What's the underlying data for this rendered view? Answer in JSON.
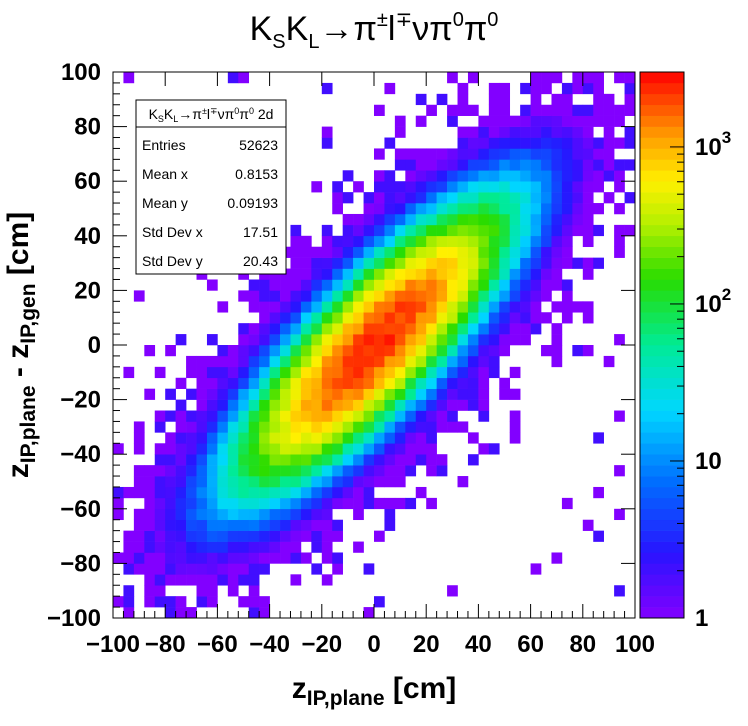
{
  "chart_data": {
    "type": "heatmap",
    "title": "K_SK_L→π^{±}l^{∓}νπ^{0}π^{0}",
    "xlabel": "z_{IP,plane} [cm]",
    "ylabel": "z_{IP,plane} - z_{IP,gen} [cm]",
    "xlim": [
      -100,
      100
    ],
    "ylim": [
      -100,
      100
    ],
    "x_ticks": [
      "−100",
      "−80",
      "−60",
      "−40",
      "−20",
      "0",
      "20",
      "40",
      "60",
      "80",
      "100"
    ],
    "y_ticks": [
      "−100",
      "−80",
      "−60",
      "−40",
      "−20",
      "0",
      "20",
      "40",
      "60",
      "80",
      "100"
    ],
    "z_scale": "log",
    "zlim": [
      1,
      3000
    ],
    "z_tick_labels": [
      "1",
      "10",
      "10^2",
      "10^3"
    ],
    "bins": {
      "nx": 50,
      "ny": 50
    },
    "distribution": {
      "center": [
        0,
        0
      ],
      "peak_count": 2500,
      "correlation_axis_deg": 45,
      "std_along_diagonal": 26,
      "std_across_diagonal": 8
    },
    "stats_box": {
      "name": "K_SK_L→π^{±}l^{∓}νπ^{0}π^{0} 2d",
      "rows": [
        {
          "label": "Entries",
          "value": "52623"
        },
        {
          "label": "Mean x",
          "value": "0.8153"
        },
        {
          "label": "Mean y",
          "value": "0.09193"
        },
        {
          "label": "Std Dev x",
          "value": "17.51"
        },
        {
          "label": "Std Dev y",
          "value": "20.43"
        }
      ]
    },
    "grid": false,
    "colormap": "root-rainbow"
  }
}
